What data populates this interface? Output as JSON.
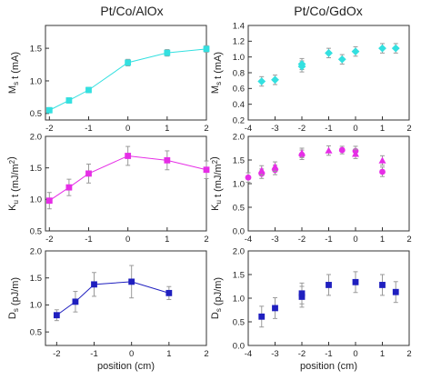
{
  "column_titles": [
    "Pt/Co/AlOx",
    "Pt/Co/GdOx"
  ],
  "chart_data": [
    {
      "type": "line",
      "column": 0,
      "row": 0,
      "ylabel": "M_s t (mA)",
      "xlim": [
        -2.1,
        2.0
      ],
      "ylim": [
        0.4,
        1.85
      ],
      "xticks": [
        -2,
        -1,
        0,
        1,
        2
      ],
      "yticks": [
        0.5,
        1.0,
        1.5
      ],
      "grid": false,
      "connect_points": true,
      "series": [
        {
          "marker": "square",
          "color": "#33e0e0",
          "points": [
            {
              "x": -2,
              "y": 0.55,
              "err": 0.04
            },
            {
              "x": -1.5,
              "y": 0.7,
              "err": 0.04
            },
            {
              "x": -1,
              "y": 0.86,
              "err": 0.04
            },
            {
              "x": 0,
              "y": 1.28,
              "err": 0.05
            },
            {
              "x": 1,
              "y": 1.43,
              "err": 0.05
            },
            {
              "x": 2,
              "y": 1.49,
              "err": 0.05
            }
          ]
        }
      ]
    },
    {
      "type": "scatter",
      "column": 1,
      "row": 0,
      "ylabel": "M_s t (mA)",
      "xlim": [
        -4,
        2
      ],
      "ylim": [
        0.2,
        1.4
      ],
      "xticks": [
        -4,
        -3,
        -2,
        -1,
        0,
        1,
        2
      ],
      "yticks": [
        0.2,
        0.4,
        0.6,
        0.8,
        1.0,
        1.2,
        1.4
      ],
      "grid": false,
      "connect_points": false,
      "series": [
        {
          "marker": "diamond",
          "color": "#33e0e0",
          "points": [
            {
              "x": -3.5,
              "y": 0.69,
              "err": 0.06
            },
            {
              "x": -3,
              "y": 0.71,
              "err": 0.06
            },
            {
              "x": -2,
              "y": 0.91,
              "err": 0.07
            },
            {
              "x": -2,
              "y": 0.88,
              "err": 0.07
            },
            {
              "x": -1,
              "y": 1.05,
              "err": 0.06
            },
            {
              "x": -0.5,
              "y": 0.97,
              "err": 0.06
            },
            {
              "x": 0,
              "y": 1.07,
              "err": 0.06
            },
            {
              "x": 1,
              "y": 1.11,
              "err": 0.06
            },
            {
              "x": 1.5,
              "y": 1.11,
              "err": 0.06
            }
          ]
        }
      ]
    },
    {
      "type": "line",
      "column": 0,
      "row": 1,
      "ylabel": "K_u t (mJ/m^2)",
      "xlim": [
        -2.1,
        2.0
      ],
      "ylim": [
        0.5,
        2.0
      ],
      "xticks": [
        -2,
        -1,
        0,
        1,
        2
      ],
      "yticks": [
        0.5,
        1.0,
        1.5,
        2.0
      ],
      "grid": false,
      "connect_points": true,
      "series": [
        {
          "marker": "square",
          "color": "#e62ee6",
          "points": [
            {
              "x": -2,
              "y": 0.98,
              "err": 0.13
            },
            {
              "x": -1.5,
              "y": 1.19,
              "err": 0.13
            },
            {
              "x": -1,
              "y": 1.41,
              "err": 0.15
            },
            {
              "x": 0,
              "y": 1.69,
              "err": 0.15
            },
            {
              "x": 1,
              "y": 1.62,
              "err": 0.15
            },
            {
              "x": 2,
              "y": 1.47,
              "err": 0.14
            }
          ]
        }
      ]
    },
    {
      "type": "scatter",
      "column": 1,
      "row": 1,
      "ylabel": "K_u t (mJ/m^2)",
      "xlim": [
        -4,
        2
      ],
      "ylim": [
        0.0,
        2.0
      ],
      "xticks": [
        -4,
        -3,
        -2,
        -1,
        0,
        1,
        2
      ],
      "yticks": [
        0.0,
        0.5,
        1.0,
        1.5,
        2.0
      ],
      "grid": false,
      "connect_points": false,
      "series": [
        {
          "marker": "circle",
          "color": "#e62ee6",
          "points": [
            {
              "x": -4,
              "y": 1.13,
              "err": 0.1
            },
            {
              "x": -3.5,
              "y": 1.21,
              "err": 0.1
            },
            {
              "x": -3,
              "y": 1.29,
              "err": 0.1
            },
            {
              "x": -2,
              "y": 1.61,
              "err": 0.1
            },
            {
              "x": -0.5,
              "y": 1.71,
              "err": 0.08
            },
            {
              "x": 0,
              "y": 1.69,
              "err": 0.1
            },
            {
              "x": 1,
              "y": 1.25,
              "err": 0.1
            }
          ]
        },
        {
          "marker": "triangle",
          "color": "#e62ee6",
          "points": [
            {
              "x": -3.5,
              "y": 1.28,
              "err": 0.1
            },
            {
              "x": -3,
              "y": 1.36,
              "err": 0.1
            },
            {
              "x": -2,
              "y": 1.65,
              "err": 0.1
            },
            {
              "x": -1,
              "y": 1.7,
              "err": 0.1
            },
            {
              "x": 0,
              "y": 1.63,
              "err": 0.1
            },
            {
              "x": 1,
              "y": 1.49,
              "err": 0.1
            }
          ]
        }
      ]
    },
    {
      "type": "line",
      "column": 0,
      "row": 2,
      "ylabel": "D_s (pJ/m)",
      "xlabel": "position (cm)",
      "xlim": [
        -2.3,
        2.0
      ],
      "ylim": [
        0.25,
        2.0
      ],
      "xticks": [
        -2,
        -1,
        0,
        1,
        2
      ],
      "yticks": [
        0.5,
        1.0,
        1.5,
        2.0
      ],
      "grid": false,
      "connect_points": true,
      "series": [
        {
          "marker": "square",
          "color": "#1f1fbf",
          "points": [
            {
              "x": -2,
              "y": 0.81,
              "err": 0.1
            },
            {
              "x": -1.5,
              "y": 1.06,
              "err": 0.19
            },
            {
              "x": -1,
              "y": 1.38,
              "err": 0.22
            },
            {
              "x": 0,
              "y": 1.43,
              "err": 0.3
            },
            {
              "x": 1,
              "y": 1.22,
              "err": 0.12
            }
          ]
        }
      ]
    },
    {
      "type": "scatter",
      "column": 1,
      "row": 2,
      "ylabel": "D_s (pJ/m)",
      "xlabel": "position (cm)",
      "xlim": [
        -4,
        2
      ],
      "ylim": [
        0.0,
        2.0
      ],
      "xticks": [
        -4,
        -3,
        -2,
        -1,
        0,
        1,
        2
      ],
      "yticks": [
        0.0,
        0.5,
        1.0,
        1.5,
        2.0
      ],
      "grid": false,
      "connect_points": false,
      "series": [
        {
          "marker": "square",
          "color": "#1f1fbf",
          "points": [
            {
              "x": -3.5,
              "y": 0.61,
              "err": 0.22
            },
            {
              "x": -3,
              "y": 0.79,
              "err": 0.22
            },
            {
              "x": -2,
              "y": 1.03,
              "err": 0.22
            },
            {
              "x": -2,
              "y": 1.1,
              "err": 0.22
            },
            {
              "x": -1,
              "y": 1.28,
              "err": 0.22
            },
            {
              "x": 0,
              "y": 1.34,
              "err": 0.22
            },
            {
              "x": 1,
              "y": 1.28,
              "err": 0.22
            },
            {
              "x": 1.5,
              "y": 1.13,
              "err": 0.22
            }
          ]
        }
      ]
    }
  ]
}
